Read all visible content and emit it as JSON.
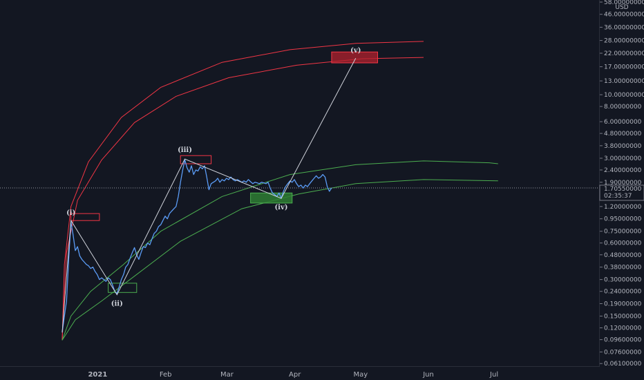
{
  "chart_data": {
    "type": "line",
    "title": "",
    "currency": "USD",
    "y_scale": "log",
    "ylim": [
      0.058,
      58.0
    ],
    "price_ticks": [
      "58.00000000",
      "46.00000000",
      "36.00000000",
      "28.00000000",
      "22.00000000",
      "17.00000000",
      "13.00000000",
      "10.00000000",
      "8.00000000",
      "6.00000000",
      "4.80000000",
      "3.80000000",
      "3.00000000",
      "2.40000000",
      "1.90000000",
      "1.20000000",
      "0.95000000",
      "0.75000000",
      "0.60000000",
      "0.48000000",
      "0.38000000",
      "0.30000000",
      "0.24000000",
      "0.19000000",
      "0.15000000",
      "0.12000000",
      "0.09600000",
      "0.07600000",
      "0.06100000"
    ],
    "x_ticks": [
      "2021",
      "Feb",
      "Mar",
      "Apr",
      "May",
      "Jun",
      "Jul"
    ],
    "current_price": {
      "label": "1.70550000",
      "value": 1.7055,
      "countdown": "02:35:37"
    },
    "colors": {
      "price": "#5b9cf6",
      "resistance": "#f23645",
      "support": "#4caf50",
      "wave": "#d1d4dc",
      "background": "#131722"
    },
    "waves": [
      {
        "label": "(i)",
        "date": "2020-12-22",
        "value": 0.92
      },
      {
        "label": "(ii)",
        "date": "2021-01-12",
        "value": 0.225
      },
      {
        "label": "(iii)",
        "date": "2021-02-12",
        "value": 2.95
      },
      {
        "label": "(iv)",
        "date": "2021-03-28",
        "value": 1.4
      },
      {
        "label": "(v)",
        "date": "2021-05-01",
        "value": 20.0
      }
    ],
    "zones": [
      {
        "name": "wave-i-zone",
        "kind": "resistance",
        "from": "2020-12-22",
        "to": "2021-01-04",
        "low": 0.92,
        "high": 1.05
      },
      {
        "name": "wave-ii-zone",
        "kind": "support",
        "from": "2021-01-08",
        "to": "2021-01-21",
        "low": 0.235,
        "high": 0.28
      },
      {
        "name": "wave-iii-zone",
        "kind": "resistance",
        "from": "2021-02-10",
        "to": "2021-02-24",
        "low": 2.7,
        "high": 3.15
      },
      {
        "name": "wave-iv-zone",
        "kind": "support",
        "from": "2021-03-14",
        "to": "2021-04-02",
        "low": 1.28,
        "high": 1.55
      },
      {
        "name": "wave-v-zone",
        "kind": "resistance",
        "from": "2021-04-20",
        "to": "2021-05-11",
        "low": 18.3,
        "high": 22.5
      }
    ],
    "arcs": [
      {
        "name": "red-outer-arc",
        "kind": "resistance",
        "points": [
          [
            "2020-12-18",
            0.095
          ],
          [
            "2020-12-19",
            0.4
          ],
          [
            "2020-12-22",
            1.2
          ],
          [
            "2020-12-30",
            2.8
          ],
          [
            "2021-01-14",
            6.5
          ],
          [
            "2021-02-01",
            11.5
          ],
          [
            "2021-03-01",
            18.5
          ],
          [
            "2021-04-01",
            23.5
          ],
          [
            "2021-05-01",
            26.5
          ],
          [
            "2021-06-01",
            27.5
          ]
        ]
      },
      {
        "name": "red-inner-arc",
        "kind": "resistance",
        "points": [
          [
            "2020-12-18",
            0.095
          ],
          [
            "2020-12-20",
            0.5
          ],
          [
            "2020-12-25",
            1.35
          ],
          [
            "2021-01-05",
            2.9
          ],
          [
            "2021-01-20",
            5.9
          ],
          [
            "2021-02-08",
            9.7
          ],
          [
            "2021-03-04",
            13.8
          ],
          [
            "2021-04-04",
            17.5
          ],
          [
            "2021-05-04",
            19.8
          ],
          [
            "2021-06-01",
            20.3
          ]
        ]
      },
      {
        "name": "green-upper-arc",
        "kind": "support",
        "points": [
          [
            "2020-12-18",
            0.095
          ],
          [
            "2020-12-22",
            0.15
          ],
          [
            "2020-12-31",
            0.24
          ],
          [
            "2021-01-15",
            0.4
          ],
          [
            "2021-02-01",
            0.75
          ],
          [
            "2021-03-01",
            1.45
          ],
          [
            "2021-04-01",
            2.2
          ],
          [
            "2021-05-01",
            2.65
          ],
          [
            "2021-06-01",
            2.85
          ],
          [
            "2021-07-01",
            2.75
          ],
          [
            "2021-07-05",
            2.7
          ]
        ]
      },
      {
        "name": "green-lower-arc",
        "kind": "support",
        "points": [
          [
            "2020-12-18",
            0.095
          ],
          [
            "2020-12-24",
            0.14
          ],
          [
            "2021-01-05",
            0.2
          ],
          [
            "2021-01-20",
            0.32
          ],
          [
            "2021-02-10",
            0.62
          ],
          [
            "2021-03-10",
            1.15
          ],
          [
            "2021-04-05",
            1.52
          ],
          [
            "2021-05-01",
            1.85
          ],
          [
            "2021-06-01",
            2.0
          ],
          [
            "2021-07-05",
            1.95
          ]
        ]
      }
    ],
    "series": [
      {
        "points": [
          [
            "2020-12-18",
            0.11
          ],
          [
            "2020-12-19",
            0.15
          ],
          [
            "2020-12-20",
            0.2
          ],
          [
            "2020-12-21",
            0.45
          ],
          [
            "2020-12-22",
            0.9
          ],
          [
            "2020-12-23",
            0.7
          ],
          [
            "2020-12-24",
            0.52
          ],
          [
            "2020-12-25",
            0.56
          ],
          [
            "2020-12-26",
            0.47
          ],
          [
            "2020-12-27",
            0.44
          ],
          [
            "2020-12-28",
            0.42
          ],
          [
            "2020-12-29",
            0.4
          ],
          [
            "2020-12-30",
            0.39
          ],
          [
            "2020-12-31",
            0.37
          ],
          [
            "2021-01-01",
            0.38
          ],
          [
            "2021-01-02",
            0.35
          ],
          [
            "2021-01-03",
            0.33
          ],
          [
            "2021-01-04",
            0.3
          ],
          [
            "2021-01-05",
            0.31
          ],
          [
            "2021-01-06",
            0.3
          ],
          [
            "2021-01-07",
            0.29
          ],
          [
            "2021-01-08",
            0.31
          ],
          [
            "2021-01-09",
            0.3
          ],
          [
            "2021-01-10",
            0.27
          ],
          [
            "2021-01-11",
            0.24
          ],
          [
            "2021-01-12",
            0.23
          ],
          [
            "2021-01-13",
            0.26
          ],
          [
            "2021-01-14",
            0.3
          ],
          [
            "2021-01-15",
            0.33
          ],
          [
            "2021-01-16",
            0.38
          ],
          [
            "2021-01-17",
            0.4
          ],
          [
            "2021-01-18",
            0.45
          ],
          [
            "2021-01-19",
            0.5
          ],
          [
            "2021-01-20",
            0.55
          ],
          [
            "2021-01-21",
            0.48
          ],
          [
            "2021-01-22",
            0.44
          ],
          [
            "2021-01-23",
            0.5
          ],
          [
            "2021-01-24",
            0.56
          ],
          [
            "2021-01-25",
            0.55
          ],
          [
            "2021-01-26",
            0.6
          ],
          [
            "2021-01-27",
            0.58
          ],
          [
            "2021-01-28",
            0.65
          ],
          [
            "2021-01-29",
            0.72
          ],
          [
            "2021-01-30",
            0.75
          ],
          [
            "2021-01-31",
            0.82
          ],
          [
            "2021-02-01",
            0.85
          ],
          [
            "2021-02-02",
            0.92
          ],
          [
            "2021-02-03",
            1.0
          ],
          [
            "2021-02-04",
            0.95
          ],
          [
            "2021-02-05",
            1.05
          ],
          [
            "2021-02-06",
            1.1
          ],
          [
            "2021-02-07",
            1.15
          ],
          [
            "2021-02-08",
            1.2
          ],
          [
            "2021-02-09",
            1.45
          ],
          [
            "2021-02-10",
            1.9
          ],
          [
            "2021-02-11",
            2.4
          ],
          [
            "2021-02-12",
            2.9
          ],
          [
            "2021-02-13",
            2.5
          ],
          [
            "2021-02-14",
            2.3
          ],
          [
            "2021-02-15",
            2.6
          ],
          [
            "2021-02-16",
            2.2
          ],
          [
            "2021-02-17",
            2.4
          ],
          [
            "2021-02-18",
            2.35
          ],
          [
            "2021-02-19",
            2.55
          ],
          [
            "2021-02-20",
            2.45
          ],
          [
            "2021-02-21",
            2.6
          ],
          [
            "2021-02-22",
            2.1
          ],
          [
            "2021-02-23",
            1.65
          ],
          [
            "2021-02-24",
            1.85
          ],
          [
            "2021-02-25",
            1.9
          ],
          [
            "2021-02-26",
            1.95
          ],
          [
            "2021-02-27",
            2.05
          ],
          [
            "2021-02-28",
            1.9
          ],
          [
            "2021-03-01",
            2.0
          ],
          [
            "2021-03-02",
            1.95
          ],
          [
            "2021-03-03",
            2.05
          ],
          [
            "2021-03-04",
            2.0
          ],
          [
            "2021-03-05",
            2.1
          ],
          [
            "2021-03-06",
            2.0
          ],
          [
            "2021-03-07",
            1.95
          ],
          [
            "2021-03-08",
            2.0
          ],
          [
            "2021-03-09",
            1.95
          ],
          [
            "2021-03-10",
            1.9
          ],
          [
            "2021-03-11",
            1.95
          ],
          [
            "2021-03-12",
            1.9
          ],
          [
            "2021-03-13",
            2.0
          ],
          [
            "2021-03-14",
            1.92
          ],
          [
            "2021-03-15",
            1.85
          ],
          [
            "2021-03-16",
            1.9
          ],
          [
            "2021-03-17",
            1.88
          ],
          [
            "2021-03-18",
            1.85
          ],
          [
            "2021-03-19",
            1.9
          ],
          [
            "2021-03-20",
            1.88
          ],
          [
            "2021-03-21",
            1.85
          ],
          [
            "2021-03-22",
            1.9
          ],
          [
            "2021-03-23",
            1.7
          ],
          [
            "2021-03-24",
            1.55
          ],
          [
            "2021-03-25",
            1.5
          ],
          [
            "2021-03-26",
            1.45
          ],
          [
            "2021-03-27",
            1.55
          ],
          [
            "2021-03-28",
            1.4
          ],
          [
            "2021-03-29",
            1.6
          ],
          [
            "2021-03-30",
            1.75
          ],
          [
            "2021-03-31",
            1.85
          ],
          [
            "2021-04-01",
            1.95
          ],
          [
            "2021-04-02",
            1.9
          ],
          [
            "2021-04-03",
            2.0
          ],
          [
            "2021-04-04",
            1.85
          ],
          [
            "2021-04-05",
            1.75
          ],
          [
            "2021-04-06",
            1.8
          ],
          [
            "2021-04-07",
            1.7
          ],
          [
            "2021-04-08",
            1.8
          ],
          [
            "2021-04-09",
            1.75
          ],
          [
            "2021-04-10",
            1.85
          ],
          [
            "2021-04-11",
            1.95
          ],
          [
            "2021-04-12",
            2.05
          ],
          [
            "2021-04-13",
            2.15
          ],
          [
            "2021-04-14",
            2.05
          ],
          [
            "2021-04-15",
            2.1
          ],
          [
            "2021-04-16",
            2.2
          ],
          [
            "2021-04-17",
            2.1
          ],
          [
            "2021-04-18",
            1.75
          ],
          [
            "2021-04-19",
            1.6
          ],
          [
            "2021-04-20",
            1.7055
          ]
        ]
      }
    ]
  }
}
